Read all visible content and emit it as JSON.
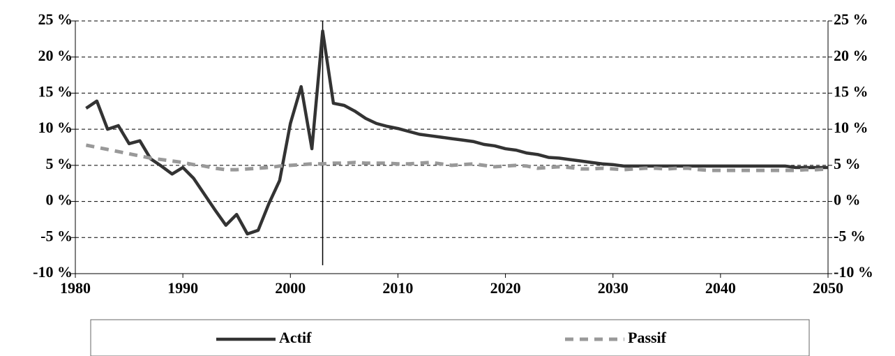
{
  "chart_data": {
    "type": "line",
    "x": [
      1981,
      1982,
      1983,
      1984,
      1985,
      1986,
      1987,
      1988,
      1989,
      1990,
      1991,
      1992,
      1993,
      1994,
      1995,
      1996,
      1997,
      1998,
      1999,
      2000,
      2001,
      2002,
      2003,
      2004,
      2005,
      2006,
      2007,
      2008,
      2009,
      2010,
      2011,
      2012,
      2013,
      2014,
      2015,
      2016,
      2017,
      2018,
      2019,
      2020,
      2021,
      2022,
      2023,
      2024,
      2025,
      2026,
      2027,
      2028,
      2029,
      2030,
      2031,
      2032,
      2033,
      2034,
      2035,
      2036,
      2037,
      2038,
      2039,
      2040,
      2041,
      2042,
      2043,
      2044,
      2045,
      2046,
      2047,
      2048,
      2049,
      2050
    ],
    "series": [
      {
        "name": "Actif",
        "color": "#333333",
        "dash": false,
        "values": [
          12.9,
          13.9,
          10.0,
          10.5,
          8.0,
          8.4,
          5.9,
          4.9,
          3.8,
          4.7,
          3.2,
          1.0,
          -1.2,
          -3.3,
          -1.8,
          -4.5,
          -4.0,
          -0.3,
          2.9,
          10.8,
          15.9,
          7.3,
          23.6,
          13.6,
          13.3,
          12.5,
          11.5,
          10.8,
          10.4,
          10.1,
          9.7,
          9.3,
          9.1,
          8.9,
          8.7,
          8.5,
          8.3,
          7.9,
          7.7,
          7.3,
          7.1,
          6.7,
          6.5,
          6.1,
          6.0,
          5.8,
          5.6,
          5.4,
          5.2,
          5.1,
          4.9,
          4.9,
          4.9,
          4.9,
          4.9,
          4.9,
          4.9,
          4.9,
          4.9,
          4.9,
          4.9,
          4.9,
          4.9,
          4.9,
          4.9,
          4.9,
          4.7,
          4.7,
          4.7,
          4.7
        ]
      },
      {
        "name": "Passif",
        "color": "#999999",
        "dash": true,
        "values": [
          7.8,
          7.5,
          7.2,
          6.9,
          6.6,
          6.3,
          6.0,
          5.8,
          5.6,
          5.4,
          5.1,
          4.9,
          4.6,
          4.4,
          4.4,
          4.5,
          4.6,
          4.7,
          4.9,
          5.0,
          5.1,
          5.2,
          5.2,
          5.3,
          5.3,
          5.4,
          5.3,
          5.3,
          5.3,
          5.2,
          5.2,
          5.3,
          5.4,
          5.2,
          5.0,
          5.1,
          5.2,
          5.0,
          4.8,
          4.9,
          5.0,
          4.9,
          4.6,
          4.7,
          4.8,
          4.7,
          4.5,
          4.5,
          4.6,
          4.5,
          4.4,
          4.5,
          4.6,
          4.6,
          4.5,
          4.6,
          4.6,
          4.4,
          4.3,
          4.3,
          4.3,
          4.3,
          4.3,
          4.3,
          4.3,
          4.3,
          4.3,
          4.4,
          4.4,
          4.5
        ]
      }
    ],
    "xlim": [
      1980,
      2050
    ],
    "xticks": [
      1980,
      1990,
      2000,
      2010,
      2020,
      2030,
      2040,
      2050
    ],
    "ylim": [
      -10,
      25
    ],
    "yticks": [
      {
        "value": -10,
        "label": "-10 %"
      },
      {
        "value": -5,
        "label": "-5 %"
      },
      {
        "value": 0,
        "label": "0 %"
      },
      {
        "value": 5,
        "label": "5 %"
      },
      {
        "value": 10,
        "label": "10 %"
      },
      {
        "value": 15,
        "label": "15 %"
      },
      {
        "value": 20,
        "label": "20 %"
      },
      {
        "value": 25,
        "label": "25 %"
      }
    ],
    "y2lim": [
      -10,
      25
    ],
    "y2ticks": [
      {
        "value": -10,
        "label": "-10 %"
      },
      {
        "value": -5,
        "label": "-5 %"
      },
      {
        "value": 0,
        "label": "0 %"
      },
      {
        "value": 5,
        "label": "5 %"
      },
      {
        "value": 10,
        "label": "10 %"
      },
      {
        "value": 15,
        "label": "15 %"
      },
      {
        "value": 20,
        "label": "20 %"
      },
      {
        "value": 25,
        "label": "25 %"
      }
    ],
    "vline": 2003,
    "grid": true,
    "legend": "bottom"
  }
}
